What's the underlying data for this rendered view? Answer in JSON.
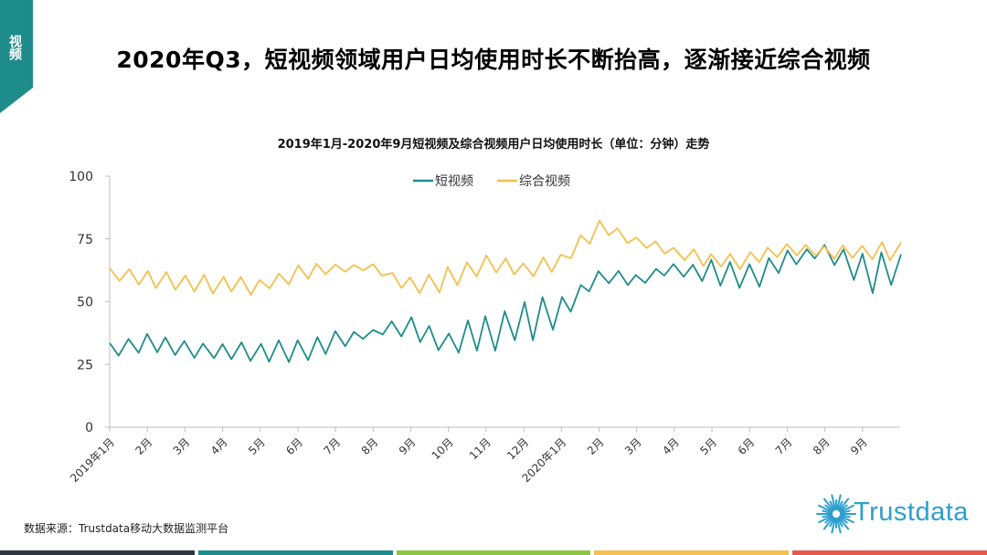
{
  "section_tab": {
    "label": "视频",
    "color": "#1e8c8a"
  },
  "page_title": "2020年Q3，短视频领域用户日均使用时长不断抬高，逐渐接近综合视频",
  "source_note": "数据来源：Trustdata移动大数据监测平台",
  "logo_text": "Trustdata",
  "bottom_bar_colors": [
    "#2f3640",
    "#1e8c8a",
    "#8cc63f",
    "#f4c04e",
    "#e8574a"
  ],
  "chart_data": {
    "type": "line",
    "title": "2019年1月-2020年9月短视频及综合视频用户日均使用时长（单位：分钟）走势",
    "ylim": [
      0,
      100
    ],
    "yticks": [
      0,
      25,
      50,
      75,
      100
    ],
    "grid": false,
    "legend": "top-center",
    "x_tick_labels": [
      "2019年1月",
      "2月",
      "3月",
      "4月",
      "5月",
      "6月",
      "7月",
      "8月",
      "9月",
      "10月",
      "11月",
      "12月",
      "2020年1月",
      "2月",
      "3月",
      "4月",
      "5月",
      "6月",
      "7月",
      "8月",
      "9月"
    ],
    "x": [
      "2019-01",
      "2019-02",
      "2019-03",
      "2019-04",
      "2019-05",
      "2019-06",
      "2019-07",
      "2019-08",
      "2019-09",
      "2019-10",
      "2019-11",
      "2019-12",
      "2020-01",
      "2020-02",
      "2020-03",
      "2020-04",
      "2020-05",
      "2020-06",
      "2020-07",
      "2020-08",
      "2020-09"
    ],
    "series": [
      {
        "name": "短视频",
        "color": "#1e8c8a",
        "values": [
          31,
          34,
          31,
          30,
          30,
          31,
          34,
          38,
          40,
          33,
          37,
          43,
          47,
          60,
          59,
          63,
          62,
          60,
          67,
          71,
          62
        ],
        "amplitude": [
          2.5,
          3,
          3,
          4,
          4,
          4,
          4,
          1,
          4,
          5,
          7,
          8,
          5,
          3,
          2,
          2,
          4,
          5,
          3,
          2,
          7
        ]
      },
      {
        "name": "综合视频",
        "color": "#f4c04e",
        "values": [
          61,
          59,
          57,
          57,
          56,
          62,
          63,
          64,
          56,
          59,
          65,
          63,
          66,
          80,
          74,
          70,
          66,
          67,
          71,
          70,
          70
        ],
        "amplitude": [
          2,
          3,
          3,
          3,
          3,
          3,
          2,
          1,
          3,
          4,
          4,
          3,
          3,
          3,
          2,
          2,
          3,
          3,
          2,
          2,
          3
        ]
      }
    ]
  }
}
